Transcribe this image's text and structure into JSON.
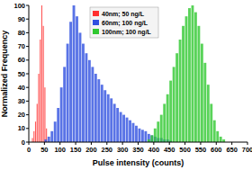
{
  "chart_data": {
    "type": "histogram",
    "x_label": "Pulse intensity (counts)",
    "y_label": "Normalized Frequency",
    "xlim": [
      0,
      700
    ],
    "xticks": [
      0,
      50,
      100,
      150,
      200,
      250,
      300,
      350,
      400,
      450,
      500,
      550,
      600,
      650,
      700
    ],
    "ylim": [
      0,
      100
    ],
    "yticks": [
      0,
      10,
      20,
      30,
      40,
      50,
      60,
      70,
      80,
      90,
      100
    ],
    "grid": false,
    "legend": "top",
    "series": [
      {
        "name": "40nm; 50 ng/L",
        "color": "#ff3030",
        "bins": [
          10,
          15,
          20,
          25,
          30,
          35,
          40,
          45,
          50,
          55,
          60
        ],
        "values": [
          3,
          8,
          15,
          28,
          50,
          75,
          100,
          85,
          40,
          10
        ]
      },
      {
        "name": "60nm; 100 ng/L",
        "color": "#3050e0",
        "bins": [
          50,
          60,
          70,
          80,
          90,
          100,
          110,
          120,
          130,
          140,
          150,
          160,
          170,
          180,
          190,
          200,
          210,
          220,
          230,
          240,
          250,
          260,
          270,
          280,
          290,
          300,
          310,
          320,
          330,
          340,
          350,
          360,
          370,
          380,
          390,
          400,
          410,
          420,
          430,
          440,
          450,
          460
        ],
        "values": [
          2,
          4,
          8,
          15,
          25,
          40,
          55,
          72,
          88,
          100,
          92,
          80,
          72,
          65,
          60,
          55,
          50,
          46,
          42,
          38,
          35,
          32,
          28,
          25,
          22,
          20,
          18,
          16,
          14,
          12,
          10,
          9,
          8,
          6,
          5,
          4,
          3,
          3,
          2,
          2,
          1
        ]
      },
      {
        "name": "100nm; 100 ng/L",
        "color": "#30c830",
        "bins": [
          380,
          390,
          400,
          410,
          420,
          430,
          440,
          450,
          460,
          470,
          480,
          490,
          500,
          510,
          520,
          530,
          540,
          550,
          560,
          570,
          580,
          590,
          600,
          610,
          620,
          630
        ],
        "values": [
          2,
          5,
          10,
          15,
          20,
          28,
          35,
          45,
          55,
          65,
          75,
          85,
          92,
          98,
          100,
          95,
          85,
          72,
          58,
          42,
          28,
          16,
          8,
          4,
          2
        ]
      }
    ]
  }
}
